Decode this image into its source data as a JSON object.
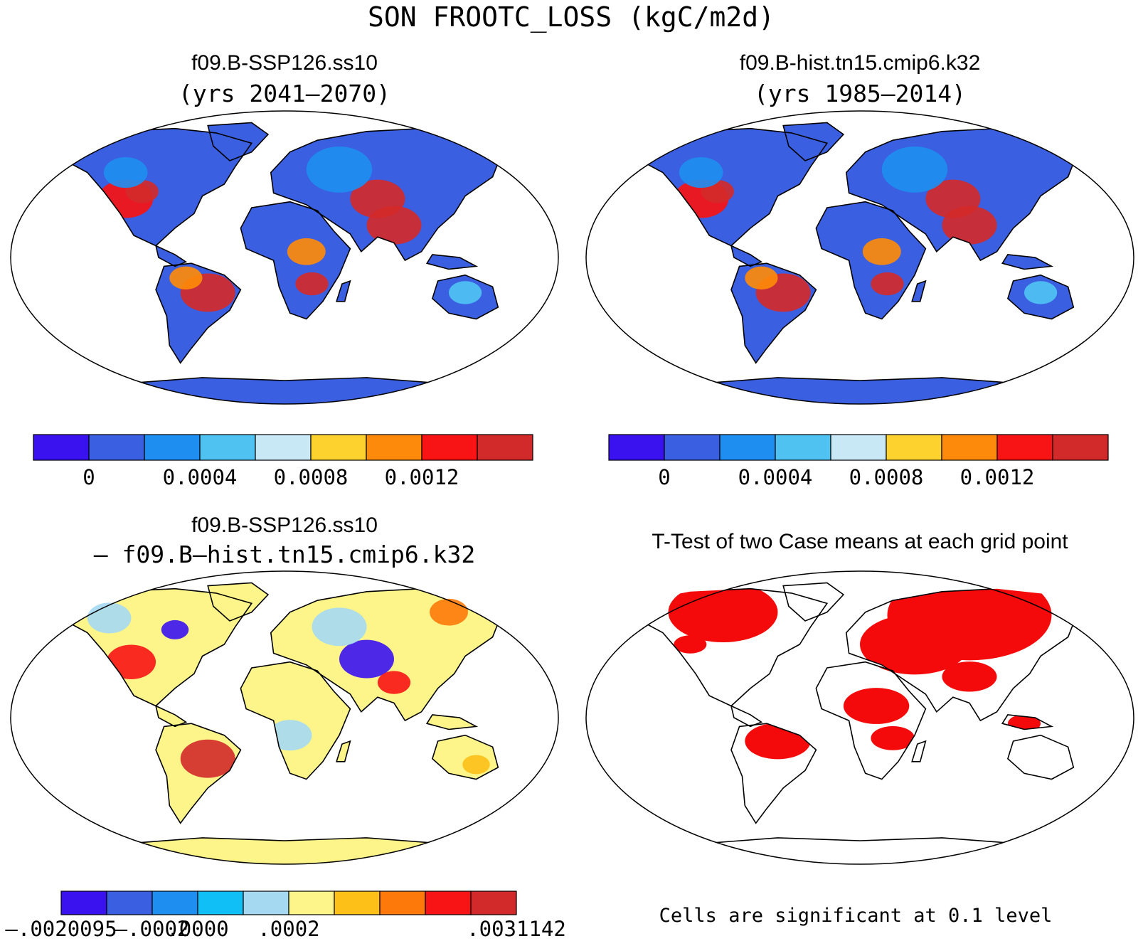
{
  "main_title": "SON FROOTC_LOSS (kgC/m2d)",
  "panels": [
    {
      "title_line1": "f09.B-SSP126.ss10",
      "title_line2": "(yrs 2041–2070)",
      "kind": "value"
    },
    {
      "title_line1": "f09.B-hist.tn15.cmip6.k32",
      "title_line2": "(yrs 1985–2014)",
      "kind": "value"
    },
    {
      "title_line1": "f09.B-SSP126.ss10",
      "title_line2": "– f09.B–hist.tn15.cmip6.k32",
      "kind": "difference"
    },
    {
      "title_line1": "T-Test of two Case means at each grid point",
      "kind": "significance"
    }
  ],
  "colorbars": {
    "value": {
      "colors": [
        "#3a12f0",
        "#3a5fe0",
        "#1e8ef0",
        "#4fc2f2",
        "#c8e8f6",
        "#fdd22e",
        "#fd8a0a",
        "#f81414",
        "#d22a2a"
      ],
      "tick_labels": [
        "0",
        "0.0004",
        "0.0008",
        "0.0012"
      ],
      "tick_boundaries": [
        1,
        3,
        5,
        7
      ]
    },
    "difference": {
      "colors": [
        "#3a12f0",
        "#3a5fe0",
        "#1e8ef0",
        "#10bff5",
        "#a5d9f2",
        "#fdf58a",
        "#fdc018",
        "#fd7a0a",
        "#f81414",
        "#d22a2a"
      ],
      "tick_labels": [
        "–.0020095",
        "–.0002",
        ".0000",
        ".0002",
        ".0031142"
      ],
      "tick_boundaries": [
        0,
        2,
        3,
        5,
        10
      ]
    }
  },
  "significance_note": "Cells are significant at 0.1 level",
  "significance_color": "#f40a0a",
  "ocean_color": "#ffffff",
  "antarctica_color_value": "#3a5fe0",
  "antarctica_color_difference": "#fdf58a"
}
